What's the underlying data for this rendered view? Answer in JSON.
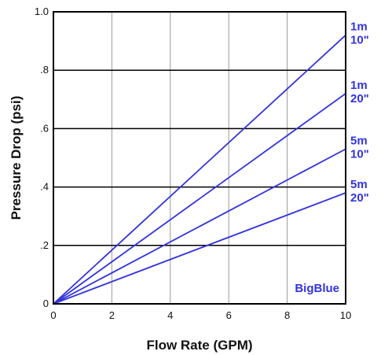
{
  "chart_data": {
    "type": "line",
    "xlabel": "Flow Rate (GPM)",
    "ylabel": "Pressure Drop (psi)",
    "xlim": [
      0,
      10
    ],
    "ylim": [
      0,
      1.0
    ],
    "x_ticks": [
      0,
      2,
      4,
      6,
      8,
      10
    ],
    "x_tick_labels": [
      "0",
      "2",
      "4",
      "6",
      "8",
      "10"
    ],
    "y_ticks": [
      0,
      0.2,
      0.4,
      0.6,
      0.8,
      1.0
    ],
    "y_tick_labels": [
      "0",
      ".2",
      ".4",
      ".6",
      ".8",
      "1.0"
    ],
    "grid": true,
    "series": [
      {
        "label_lines": [
          "1m",
          "10\""
        ],
        "x": [
          0,
          10
        ],
        "values": [
          0,
          0.92
        ]
      },
      {
        "label_lines": [
          "1m",
          "20\""
        ],
        "x": [
          0,
          10
        ],
        "values": [
          0,
          0.72
        ]
      },
      {
        "label_lines": [
          "5m",
          "10\""
        ],
        "x": [
          0,
          10
        ],
        "values": [
          0,
          0.53
        ]
      },
      {
        "label_lines": [
          "5m",
          "20\""
        ],
        "x": [
          0,
          10
        ],
        "values": [
          0,
          0.38
        ]
      }
    ],
    "annotations": [
      {
        "text": "BigBlue"
      }
    ],
    "colors": {
      "series": "#3333dd",
      "grid_major": "#000000",
      "grid_minor": "#999999"
    }
  }
}
